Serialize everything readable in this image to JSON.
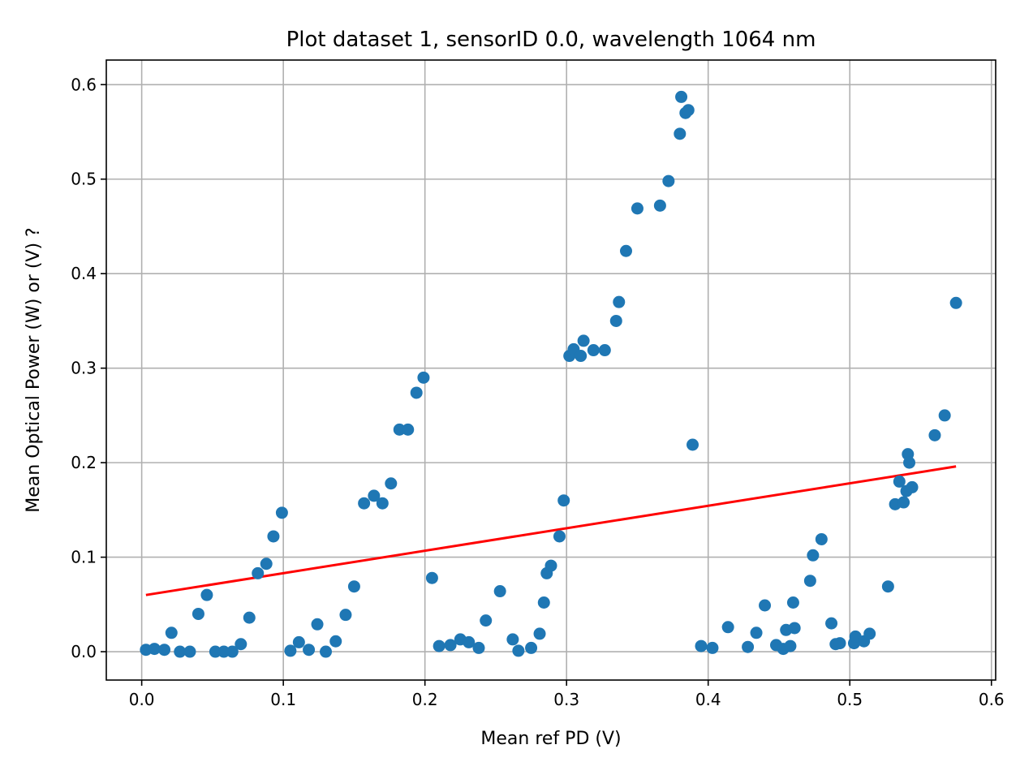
{
  "chart_data": {
    "type": "scatter",
    "title": "Plot dataset 1, sensorID 0.0, wavelength 1064 nm",
    "xlabel": "Mean ref PD (V)",
    "ylabel": "Mean Optical Power (W) or (V) ?",
    "xlim": [
      -0.025,
      0.603
    ],
    "ylim": [
      -0.03,
      0.626
    ],
    "xticks": [
      0.0,
      0.1,
      0.2,
      0.3,
      0.4,
      0.5,
      0.6
    ],
    "xtick_labels": [
      "0.0",
      "0.1",
      "0.2",
      "0.3",
      "0.4",
      "0.5",
      "0.6"
    ],
    "yticks": [
      0.0,
      0.1,
      0.2,
      0.3,
      0.4,
      0.5,
      0.6
    ],
    "ytick_labels": [
      "0.0",
      "0.1",
      "0.2",
      "0.3",
      "0.4",
      "0.5",
      "0.6"
    ],
    "grid": true,
    "colors": {
      "points": "#1f77b4",
      "fit": "#ff0000"
    },
    "series": [
      {
        "type": "scatter",
        "x": [
          0.003,
          0.009,
          0.016,
          0.021,
          0.027,
          0.034,
          0.04,
          0.046,
          0.052,
          0.058,
          0.064,
          0.07,
          0.076,
          0.082,
          0.088,
          0.093,
          0.099,
          0.105,
          0.111,
          0.118,
          0.124,
          0.13,
          0.137,
          0.144,
          0.15,
          0.157,
          0.164,
          0.17,
          0.176,
          0.182,
          0.188,
          0.194,
          0.199,
          0.205,
          0.21,
          0.218,
          0.225,
          0.231,
          0.238,
          0.243,
          0.253,
          0.262,
          0.266,
          0.275,
          0.281,
          0.284,
          0.286,
          0.289,
          0.295,
          0.298,
          0.302,
          0.305,
          0.31,
          0.312,
          0.319,
          0.327,
          0.335,
          0.337,
          0.342,
          0.35,
          0.366,
          0.372,
          0.38,
          0.381,
          0.384,
          0.386,
          0.389,
          0.395,
          0.403,
          0.414,
          0.428,
          0.434,
          0.44,
          0.448,
          0.453,
          0.455,
          0.458,
          0.46,
          0.461,
          0.472,
          0.474,
          0.48,
          0.487,
          0.49,
          0.493,
          0.503,
          0.504,
          0.51,
          0.514,
          0.527,
          0.532,
          0.535,
          0.538,
          0.54,
          0.541,
          0.542,
          0.544,
          0.56,
          0.567,
          0.575
        ],
        "y": [
          0.002,
          0.003,
          0.002,
          0.02,
          0.0,
          0.0,
          0.04,
          0.06,
          0.0,
          0.0,
          0.0,
          0.008,
          0.036,
          0.083,
          0.093,
          0.122,
          0.147,
          0.001,
          0.01,
          0.002,
          0.029,
          0.0,
          0.011,
          0.039,
          0.069,
          0.157,
          0.165,
          0.157,
          0.178,
          0.235,
          0.235,
          0.274,
          0.29,
          0.078,
          0.006,
          0.007,
          0.013,
          0.01,
          0.004,
          0.033,
          0.064,
          0.013,
          0.001,
          0.004,
          0.019,
          0.052,
          0.083,
          0.091,
          0.122,
          0.16,
          0.313,
          0.32,
          0.313,
          0.329,
          0.319,
          0.319,
          0.35,
          0.37,
          0.424,
          0.469,
          0.472,
          0.498,
          0.548,
          0.587,
          0.57,
          0.573,
          0.219,
          0.006,
          0.004,
          0.026,
          0.005,
          0.02,
          0.049,
          0.007,
          0.003,
          0.023,
          0.006,
          0.052,
          0.025,
          0.075,
          0.102,
          0.119,
          0.03,
          0.008,
          0.009,
          0.009,
          0.016,
          0.011,
          0.019,
          0.069,
          0.156,
          0.18,
          0.158,
          0.17,
          0.209,
          0.2,
          0.174,
          0.229,
          0.25,
          0.369
        ]
      },
      {
        "type": "line",
        "x": [
          0.003,
          0.575
        ],
        "y": [
          0.06,
          0.196
        ]
      }
    ]
  }
}
